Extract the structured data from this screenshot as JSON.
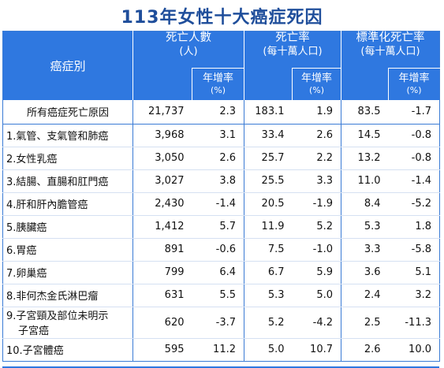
{
  "title": "113年女性十大癌症死因",
  "header": {
    "cancer_label": "癌症別",
    "deaths_label": "死亡人數",
    "deaths_unit": "(人)",
    "rate_label": "死亡率",
    "rate_unit": "(每十萬人口)",
    "std_rate_label": "標準化死亡率",
    "std_rate_unit": "(每十萬人口)",
    "growth_label": "年增率",
    "growth_unit": "(%)"
  },
  "rows": [
    {
      "name": "所有癌症死亡原因",
      "deaths": "21,737",
      "deaths_growth": "2.3",
      "rate": "183.1",
      "rate_growth": "1.9",
      "std_rate": "83.5",
      "std_growth": "-1.7"
    },
    {
      "name": "1.氣管、支氣管和肺癌",
      "deaths": "3,968",
      "deaths_growth": "3.1",
      "rate": "33.4",
      "rate_growth": "2.6",
      "std_rate": "14.5",
      "std_growth": "-0.8"
    },
    {
      "name": "2.女性乳癌",
      "deaths": "3,050",
      "deaths_growth": "2.6",
      "rate": "25.7",
      "rate_growth": "2.2",
      "std_rate": "13.2",
      "std_growth": "-0.8"
    },
    {
      "name": "3.結腸、直腸和肛門癌",
      "deaths": "3,027",
      "deaths_growth": "3.8",
      "rate": "25.5",
      "rate_growth": "3.3",
      "std_rate": "11.0",
      "std_growth": "-1.4"
    },
    {
      "name": "4.肝和肝內膽管癌",
      "deaths": "2,430",
      "deaths_growth": "-1.4",
      "rate": "20.5",
      "rate_growth": "-1.9",
      "std_rate": "8.4",
      "std_growth": "-5.2"
    },
    {
      "name": "5.胰臟癌",
      "deaths": "1,412",
      "deaths_growth": "5.7",
      "rate": "11.9",
      "rate_growth": "5.2",
      "std_rate": "5.3",
      "std_growth": "1.8"
    },
    {
      "name": "6.胃癌",
      "deaths": "891",
      "deaths_growth": "-0.6",
      "rate": "7.5",
      "rate_growth": "-1.0",
      "std_rate": "3.3",
      "std_growth": "-5.8"
    },
    {
      "name": "7.卵巢癌",
      "deaths": "799",
      "deaths_growth": "6.4",
      "rate": "6.7",
      "rate_growth": "5.9",
      "std_rate": "3.6",
      "std_growth": "5.1"
    },
    {
      "name": "8.非何杰金氏淋巴瘤",
      "deaths": "631",
      "deaths_growth": "5.5",
      "rate": "5.3",
      "rate_growth": "5.0",
      "std_rate": "2.4",
      "std_growth": "3.2"
    },
    {
      "name": "9.子宮頸及部位未明示",
      "name_line2": "子宮癌",
      "deaths": "620",
      "deaths_growth": "-3.7",
      "rate": "5.2",
      "rate_growth": "-4.2",
      "std_rate": "2.5",
      "std_growth": "-11.3"
    },
    {
      "name": "10.子宮體癌",
      "deaths": "595",
      "deaths_growth": "11.2",
      "rate": "5.0",
      "rate_growth": "10.7",
      "std_rate": "2.6",
      "std_growth": "10.0"
    }
  ]
}
